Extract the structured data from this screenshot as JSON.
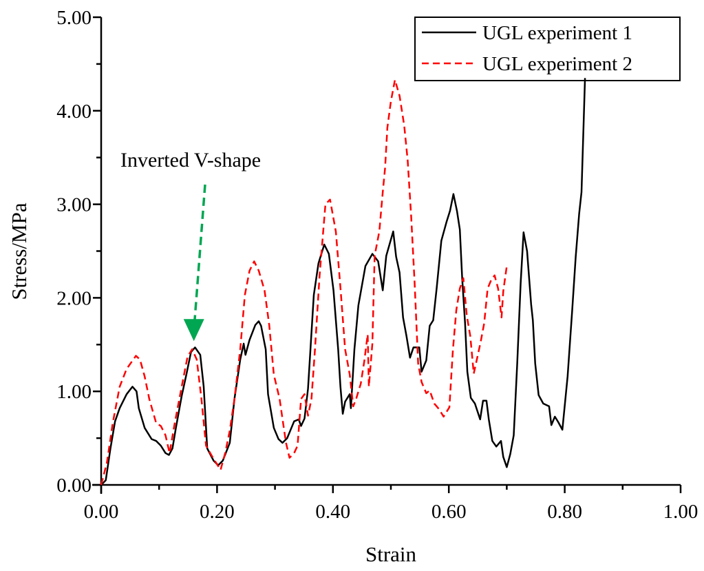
{
  "chart_data": {
    "type": "line",
    "title": "",
    "xlabel": "Strain",
    "ylabel": "Stress/MPa",
    "xlim": [
      0,
      1.0
    ],
    "ylim": [
      0,
      5.0
    ],
    "x_ticks": [
      "0.00",
      "0.20",
      "0.40",
      "0.60",
      "0.80",
      "1.00"
    ],
    "y_ticks": [
      "0.00",
      "1.00",
      "2.00",
      "3.00",
      "4.00",
      "5.00"
    ],
    "grid": false,
    "legend_position": "top-right",
    "annotation": {
      "text": "Inverted V-shape",
      "points_to": [
        0.16,
        1.5
      ],
      "color": "#00a651"
    },
    "series": [
      {
        "name": "UGL experiment 1",
        "color": "#000000",
        "style": "solid",
        "points": [
          [
            0,
            0
          ],
          [
            0.008,
            0.05
          ],
          [
            0.016,
            0.39
          ],
          [
            0.024,
            0.68
          ],
          [
            0.032,
            0.82
          ],
          [
            0.044,
            0.97
          ],
          [
            0.054,
            1.05
          ],
          [
            0.061,
            1.0
          ],
          [
            0.065,
            0.82
          ],
          [
            0.075,
            0.61
          ],
          [
            0.087,
            0.49
          ],
          [
            0.095,
            0.47
          ],
          [
            0.103,
            0.42
          ],
          [
            0.111,
            0.34
          ],
          [
            0.117,
            0.32
          ],
          [
            0.123,
            0.39
          ],
          [
            0.129,
            0.61
          ],
          [
            0.139,
            0.95
          ],
          [
            0.147,
            1.18
          ],
          [
            0.155,
            1.42
          ],
          [
            0.162,
            1.47
          ],
          [
            0.171,
            1.39
          ],
          [
            0.177,
            1.05
          ],
          [
            0.183,
            0.39
          ],
          [
            0.194,
            0.26
          ],
          [
            0.202,
            0.21
          ],
          [
            0.21,
            0.26
          ],
          [
            0.222,
            0.45
          ],
          [
            0.23,
            0.92
          ],
          [
            0.24,
            1.34
          ],
          [
            0.246,
            1.51
          ],
          [
            0.249,
            1.39
          ],
          [
            0.256,
            1.55
          ],
          [
            0.266,
            1.71
          ],
          [
            0.272,
            1.75
          ],
          [
            0.276,
            1.7
          ],
          [
            0.284,
            1.45
          ],
          [
            0.288,
            0.97
          ],
          [
            0.298,
            0.61
          ],
          [
            0.306,
            0.49
          ],
          [
            0.313,
            0.45
          ],
          [
            0.321,
            0.5
          ],
          [
            0.333,
            0.68
          ],
          [
            0.341,
            0.7
          ],
          [
            0.345,
            0.63
          ],
          [
            0.351,
            0.71
          ],
          [
            0.357,
            1.03
          ],
          [
            0.367,
            2.03
          ],
          [
            0.375,
            2.37
          ],
          [
            0.385,
            2.57
          ],
          [
            0.393,
            2.47
          ],
          [
            0.401,
            2.08
          ],
          [
            0.409,
            1.45
          ],
          [
            0.413,
            1.05
          ],
          [
            0.417,
            0.76
          ],
          [
            0.421,
            0.89
          ],
          [
            0.429,
            0.97
          ],
          [
            0.431,
            0.82
          ],
          [
            0.437,
            1.45
          ],
          [
            0.444,
            1.92
          ],
          [
            0.456,
            2.34
          ],
          [
            0.468,
            2.47
          ],
          [
            0.478,
            2.39
          ],
          [
            0.486,
            2.08
          ],
          [
            0.492,
            2.45
          ],
          [
            0.504,
            2.71
          ],
          [
            0.509,
            2.44
          ],
          [
            0.515,
            2.27
          ],
          [
            0.521,
            1.79
          ],
          [
            0.527,
            1.59
          ],
          [
            0.533,
            1.36
          ],
          [
            0.539,
            1.47
          ],
          [
            0.549,
            1.47
          ],
          [
            0.553,
            1.21
          ],
          [
            0.561,
            1.33
          ],
          [
            0.567,
            1.7
          ],
          [
            0.573,
            1.76
          ],
          [
            0.579,
            2.1
          ],
          [
            0.587,
            2.61
          ],
          [
            0.596,
            2.81
          ],
          [
            0.602,
            2.93
          ],
          [
            0.608,
            3.11
          ],
          [
            0.614,
            2.93
          ],
          [
            0.619,
            2.73
          ],
          [
            0.623,
            2.21
          ],
          [
            0.628,
            1.73
          ],
          [
            0.632,
            1.21
          ],
          [
            0.638,
            0.93
          ],
          [
            0.645,
            0.87
          ],
          [
            0.654,
            0.7
          ],
          [
            0.659,
            0.9
          ],
          [
            0.665,
            0.9
          ],
          [
            0.669,
            0.7
          ],
          [
            0.675,
            0.47
          ],
          [
            0.682,
            0.41
          ],
          [
            0.69,
            0.47
          ],
          [
            0.694,
            0.3
          ],
          [
            0.7,
            0.19
          ],
          [
            0.706,
            0.33
          ],
          [
            0.712,
            0.53
          ],
          [
            0.718,
            1.3
          ],
          [
            0.724,
            2.16
          ],
          [
            0.729,
            2.7
          ],
          [
            0.735,
            2.5
          ],
          [
            0.742,
            1.93
          ],
          [
            0.745,
            1.76
          ],
          [
            0.749,
            1.3
          ],
          [
            0.755,
            0.96
          ],
          [
            0.763,
            0.87
          ],
          [
            0.773,
            0.84
          ],
          [
            0.777,
            0.64
          ],
          [
            0.783,
            0.73
          ],
          [
            0.789,
            0.67
          ],
          [
            0.796,
            0.59
          ],
          [
            0.805,
            1.16
          ],
          [
            0.813,
            1.87
          ],
          [
            0.819,
            2.44
          ],
          [
            0.825,
            2.9
          ],
          [
            0.829,
            3.13
          ],
          [
            0.835,
            4.35
          ]
        ]
      },
      {
        "name": "UGL experiment 2",
        "color": "#ff0000",
        "style": "dashed",
        "points": [
          [
            0,
            0
          ],
          [
            0.01,
            0.24
          ],
          [
            0.02,
            0.66
          ],
          [
            0.032,
            1.05
          ],
          [
            0.044,
            1.24
          ],
          [
            0.06,
            1.38
          ],
          [
            0.067,
            1.34
          ],
          [
            0.075,
            1.16
          ],
          [
            0.083,
            0.92
          ],
          [
            0.089,
            0.79
          ],
          [
            0.095,
            0.66
          ],
          [
            0.103,
            0.63
          ],
          [
            0.111,
            0.53
          ],
          [
            0.118,
            0.34
          ],
          [
            0.127,
            0.66
          ],
          [
            0.139,
            1.05
          ],
          [
            0.149,
            1.37
          ],
          [
            0.157,
            1.45
          ],
          [
            0.165,
            1.34
          ],
          [
            0.173,
            0.92
          ],
          [
            0.181,
            0.42
          ],
          [
            0.19,
            0.32
          ],
          [
            0.198,
            0.24
          ],
          [
            0.206,
            0.16
          ],
          [
            0.214,
            0.34
          ],
          [
            0.222,
            0.58
          ],
          [
            0.23,
            0.92
          ],
          [
            0.24,
            1.45
          ],
          [
            0.248,
            2.03
          ],
          [
            0.256,
            2.29
          ],
          [
            0.264,
            2.39
          ],
          [
            0.272,
            2.29
          ],
          [
            0.282,
            2.08
          ],
          [
            0.29,
            1.71
          ],
          [
            0.298,
            1.18
          ],
          [
            0.308,
            0.92
          ],
          [
            0.314,
            0.66
          ],
          [
            0.319,
            0.45
          ],
          [
            0.325,
            0.29
          ],
          [
            0.333,
            0.34
          ],
          [
            0.339,
            0.42
          ],
          [
            0.345,
            0.92
          ],
          [
            0.351,
            0.97
          ],
          [
            0.357,
            0.74
          ],
          [
            0.363,
            0.92
          ],
          [
            0.369,
            1.45
          ],
          [
            0.377,
            2.24
          ],
          [
            0.387,
            3.0
          ],
          [
            0.395,
            3.05
          ],
          [
            0.405,
            2.71
          ],
          [
            0.413,
            2.11
          ],
          [
            0.421,
            1.45
          ],
          [
            0.429,
            1.18
          ],
          [
            0.435,
            0.84
          ],
          [
            0.44,
            0.92
          ],
          [
            0.448,
            1.08
          ],
          [
            0.454,
            1.32
          ],
          [
            0.46,
            1.61
          ],
          [
            0.462,
            1.05
          ],
          [
            0.468,
            1.51
          ],
          [
            0.472,
            2.45
          ],
          [
            0.48,
            2.71
          ],
          [
            0.486,
            3.13
          ],
          [
            0.49,
            3.39
          ],
          [
            0.494,
            3.82
          ],
          [
            0.5,
            4.1
          ],
          [
            0.507,
            4.33
          ],
          [
            0.515,
            4.16
          ],
          [
            0.523,
            3.84
          ],
          [
            0.529,
            3.47
          ],
          [
            0.535,
            2.87
          ],
          [
            0.541,
            2.16
          ],
          [
            0.547,
            1.3
          ],
          [
            0.553,
            1.1
          ],
          [
            0.561,
            0.98
          ],
          [
            0.567,
            1.01
          ],
          [
            0.575,
            0.87
          ],
          [
            0.583,
            0.81
          ],
          [
            0.591,
            0.73
          ],
          [
            0.601,
            0.83
          ],
          [
            0.607,
            1.44
          ],
          [
            0.613,
            1.87
          ],
          [
            0.619,
            2.1
          ],
          [
            0.625,
            2.21
          ],
          [
            0.631,
            1.81
          ],
          [
            0.637,
            1.59
          ],
          [
            0.643,
            1.19
          ],
          [
            0.649,
            1.36
          ],
          [
            0.655,
            1.53
          ],
          [
            0.661,
            1.73
          ],
          [
            0.667,
            2.1
          ],
          [
            0.673,
            2.19
          ],
          [
            0.679,
            2.24
          ],
          [
            0.685,
            2.1
          ],
          [
            0.691,
            1.79
          ],
          [
            0.694,
            2.07
          ],
          [
            0.7,
            2.34
          ]
        ]
      }
    ]
  }
}
